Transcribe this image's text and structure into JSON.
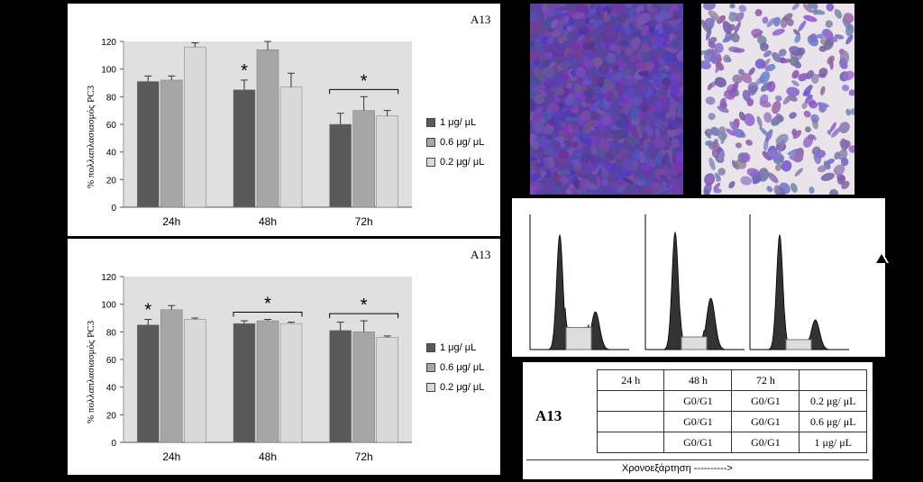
{
  "chart_data": [
    {
      "type": "bar",
      "tag": "A13",
      "ylabel": "% πολλαπλασιασμός PC3",
      "ylim": [
        0,
        120
      ],
      "yticks": [
        0,
        20,
        40,
        60,
        80,
        100,
        120
      ],
      "categories": [
        "24h",
        "48h",
        "72h"
      ],
      "series": [
        {
          "name": "1 μg/ μL",
          "color": "#595959",
          "values": [
            91,
            85,
            60
          ],
          "errors": [
            4,
            7,
            8
          ]
        },
        {
          "name": "0.6 μg/ μL",
          "color": "#a6a6a6",
          "values": [
            92,
            114,
            70
          ],
          "errors": [
            3,
            6,
            10
          ]
        },
        {
          "name": "0.2 μg/ μL",
          "color": "#d9d9d9",
          "values": [
            116,
            87,
            66
          ],
          "errors": [
            3,
            10,
            4
          ]
        }
      ],
      "significance": [
        {
          "category": 1,
          "type": "single",
          "label": "*"
        },
        {
          "category": 2,
          "type": "bracket",
          "label": "*"
        }
      ],
      "grid": false,
      "legend": "right"
    },
    {
      "type": "bar",
      "tag": "A13",
      "ylabel": "% πολλαπλασιασμός PC3",
      "ylim": [
        0,
        120
      ],
      "yticks": [
        0,
        20,
        40,
        60,
        80,
        100,
        120
      ],
      "categories": [
        "24h",
        "48h",
        "72h"
      ],
      "series": [
        {
          "name": "1 μg/ μL",
          "color": "#595959",
          "values": [
            85,
            86,
            81
          ],
          "errors": [
            4,
            2,
            6
          ]
        },
        {
          "name": "0.6 μg/ μL",
          "color": "#a6a6a6",
          "values": [
            96,
            88,
            80
          ],
          "errors": [
            3,
            1,
            8
          ]
        },
        {
          "name": "0.2 μg/ μL",
          "color": "#d9d9d9",
          "values": [
            89,
            86,
            76
          ],
          "errors": [
            1,
            1,
            1
          ]
        }
      ],
      "significance": [
        {
          "category": 0,
          "type": "single",
          "label": "*"
        },
        {
          "category": 1,
          "type": "bracket",
          "label": "*"
        },
        {
          "category": 2,
          "type": "bracket",
          "label": "*"
        }
      ],
      "grid": false,
      "legend": "right"
    }
  ],
  "table": {
    "label": "A13",
    "headers": [
      "24 h",
      "48 h",
      "72 h",
      ""
    ],
    "rows": [
      [
        "",
        "G0/G1",
        "G0/G1",
        "0.2 μg/ μL"
      ],
      [
        "",
        "G0/G1",
        "G0/G1",
        "0.6 μg/ μL"
      ],
      [
        "",
        "G0/G1",
        "G0/G1",
        "1 μg/ μL"
      ]
    ],
    "timeline": "Χρονοεξάρτηση ---------->"
  },
  "colors": {
    "background": "#000000",
    "plot_bg": "#e0e0e0",
    "stain": "#6a4fa8"
  }
}
